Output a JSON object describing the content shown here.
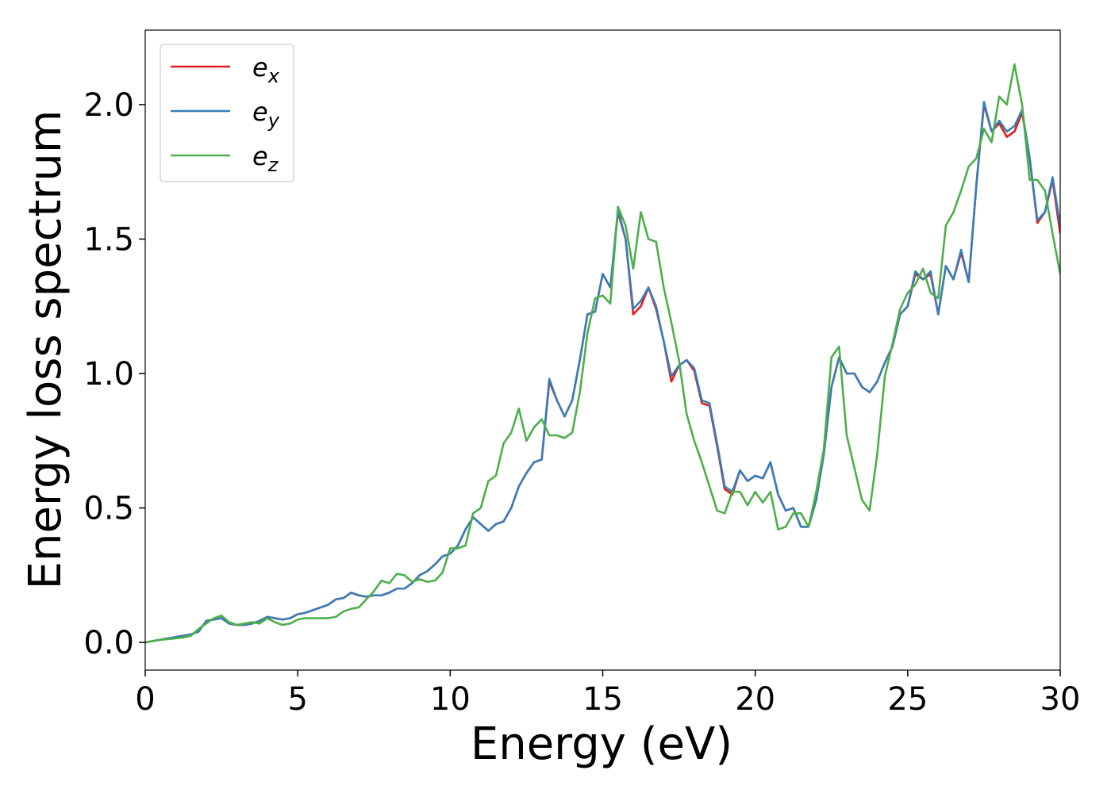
{
  "chart_data": {
    "type": "line",
    "xlabel": "Energy (eV)",
    "ylabel": "Energy loss spectrum",
    "xlim": [
      0,
      30
    ],
    "ylim": [
      -0.103,
      2.277
    ],
    "xticks": [
      0,
      5,
      10,
      15,
      20,
      25,
      30
    ],
    "yticks": [
      {
        "value": 0,
        "label": "0.0"
      },
      {
        "value": 0.5,
        "label": "0.5"
      },
      {
        "value": 1,
        "label": "1.0"
      },
      {
        "value": 1.5,
        "label": "1.5"
      },
      {
        "value": 2,
        "label": "2.0"
      }
    ],
    "legend": "upper left",
    "x": [
      0,
      0.25,
      0.5,
      0.75,
      1,
      1.25,
      1.5,
      1.75,
      2,
      2.25,
      2.5,
      2.75,
      3,
      3.25,
      3.5,
      3.75,
      4,
      4.25,
      4.5,
      4.75,
      5,
      5.25,
      5.5,
      5.75,
      6,
      6.25,
      6.5,
      6.75,
      7,
      7.25,
      7.5,
      7.75,
      8,
      8.25,
      8.5,
      8.75,
      9,
      9.25,
      9.5,
      9.75,
      10,
      10.25,
      10.5,
      10.75,
      11,
      11.25,
      11.5,
      11.75,
      12,
      12.25,
      12.5,
      12.75,
      13,
      13.25,
      13.5,
      13.75,
      14,
      14.25,
      14.5,
      14.75,
      15,
      15.25,
      15.5,
      15.75,
      16,
      16.25,
      16.5,
      16.75,
      17,
      17.25,
      17.5,
      17.75,
      18,
      18.25,
      18.5,
      18.75,
      19,
      19.25,
      19.5,
      19.75,
      20,
      20.25,
      20.5,
      20.75,
      21,
      21.25,
      21.5,
      21.75,
      22,
      22.25,
      22.5,
      22.75,
      23,
      23.25,
      23.5,
      23.75,
      24,
      24.25,
      24.5,
      24.75,
      25,
      25.25,
      25.5,
      25.75,
      26,
      26.25,
      26.5,
      26.75,
      27,
      27.25,
      27.5,
      27.75,
      28,
      28.25,
      28.5,
      28.75,
      29,
      29.25,
      29.5,
      29.75,
      30
    ],
    "series": [
      {
        "name": "ex",
        "color": "#e41a1c",
        "values": [
          0,
          0.005,
          0.01,
          0.015,
          0.02,
          0.025,
          0.03,
          0.04,
          0.08,
          0.085,
          0.09,
          0.07,
          0.065,
          0.065,
          0.07,
          0.08,
          0.095,
          0.09,
          0.085,
          0.09,
          0.105,
          0.11,
          0.12,
          0.13,
          0.14,
          0.16,
          0.165,
          0.185,
          0.175,
          0.17,
          0.175,
          0.175,
          0.185,
          0.2,
          0.2,
          0.22,
          0.25,
          0.265,
          0.29,
          0.32,
          0.33,
          0.36,
          0.42,
          0.465,
          0.44,
          0.415,
          0.44,
          0.45,
          0.5,
          0.58,
          0.63,
          0.67,
          0.68,
          0.97,
          0.9,
          0.84,
          0.9,
          1.05,
          1.22,
          1.23,
          1.37,
          1.32,
          1.6,
          1.5,
          1.22,
          1.25,
          1.32,
          1.24,
          1.12,
          0.97,
          1.03,
          1.05,
          1.01,
          0.89,
          0.88,
          0.73,
          0.57,
          0.55,
          0.64,
          0.6,
          0.62,
          0.61,
          0.67,
          0.55,
          0.49,
          0.5,
          0.43,
          0.43,
          0.53,
          0.7,
          0.95,
          1.06,
          1.0,
          1.0,
          0.95,
          0.93,
          0.97,
          1.04,
          1.1,
          1.22,
          1.25,
          1.37,
          1.35,
          1.37,
          1.22,
          1.4,
          1.35,
          1.45,
          1.34,
          1.7,
          2.0,
          1.9,
          1.93,
          1.88,
          1.9,
          1.97,
          1.8,
          1.56,
          1.6,
          1.72,
          1.52
        ]
      },
      {
        "name": "ey",
        "color": "#377eb8",
        "values": [
          0,
          0.005,
          0.01,
          0.015,
          0.02,
          0.025,
          0.03,
          0.04,
          0.08,
          0.085,
          0.09,
          0.07,
          0.065,
          0.065,
          0.07,
          0.08,
          0.095,
          0.09,
          0.085,
          0.09,
          0.105,
          0.11,
          0.12,
          0.13,
          0.14,
          0.16,
          0.165,
          0.185,
          0.175,
          0.17,
          0.175,
          0.175,
          0.185,
          0.2,
          0.2,
          0.22,
          0.25,
          0.265,
          0.29,
          0.32,
          0.33,
          0.36,
          0.42,
          0.465,
          0.44,
          0.415,
          0.44,
          0.45,
          0.5,
          0.58,
          0.63,
          0.67,
          0.68,
          0.98,
          0.9,
          0.84,
          0.9,
          1.05,
          1.22,
          1.23,
          1.37,
          1.32,
          1.61,
          1.5,
          1.24,
          1.27,
          1.32,
          1.25,
          1.12,
          0.99,
          1.03,
          1.05,
          1.02,
          0.9,
          0.89,
          0.74,
          0.58,
          0.56,
          0.64,
          0.6,
          0.62,
          0.61,
          0.67,
          0.55,
          0.49,
          0.5,
          0.43,
          0.43,
          0.53,
          0.7,
          0.95,
          1.06,
          1.0,
          1.0,
          0.95,
          0.93,
          0.97,
          1.04,
          1.1,
          1.22,
          1.25,
          1.38,
          1.35,
          1.38,
          1.22,
          1.4,
          1.35,
          1.46,
          1.34,
          1.7,
          2.01,
          1.9,
          1.94,
          1.9,
          1.92,
          1.98,
          1.8,
          1.57,
          1.6,
          1.73,
          1.55
        ]
      },
      {
        "name": "ez",
        "color": "#4daf4a",
        "values": [
          0,
          0.005,
          0.01,
          0.012,
          0.015,
          0.018,
          0.025,
          0.05,
          0.07,
          0.09,
          0.1,
          0.075,
          0.065,
          0.07,
          0.075,
          0.07,
          0.09,
          0.075,
          0.065,
          0.07,
          0.085,
          0.09,
          0.09,
          0.09,
          0.09,
          0.095,
          0.115,
          0.125,
          0.13,
          0.16,
          0.19,
          0.23,
          0.22,
          0.255,
          0.25,
          0.225,
          0.235,
          0.225,
          0.23,
          0.26,
          0.35,
          0.35,
          0.36,
          0.48,
          0.5,
          0.6,
          0.62,
          0.74,
          0.78,
          0.87,
          0.75,
          0.8,
          0.83,
          0.77,
          0.77,
          0.76,
          0.78,
          0.93,
          1.15,
          1.28,
          1.29,
          1.26,
          1.62,
          1.55,
          1.39,
          1.6,
          1.5,
          1.49,
          1.32,
          1.19,
          1.05,
          0.85,
          0.75,
          0.67,
          0.58,
          0.49,
          0.48,
          0.56,
          0.56,
          0.51,
          0.56,
          0.52,
          0.56,
          0.42,
          0.43,
          0.48,
          0.48,
          0.43,
          0.56,
          0.72,
          1.06,
          1.1,
          0.77,
          0.65,
          0.53,
          0.49,
          0.7,
          0.99,
          1.11,
          1.24,
          1.3,
          1.33,
          1.39,
          1.3,
          1.28,
          1.55,
          1.6,
          1.68,
          1.77,
          1.8,
          1.91,
          1.86,
          2.03,
          2.0,
          2.15,
          2.0,
          1.72,
          1.72,
          1.68,
          1.52,
          1.37
        ]
      }
    ]
  }
}
